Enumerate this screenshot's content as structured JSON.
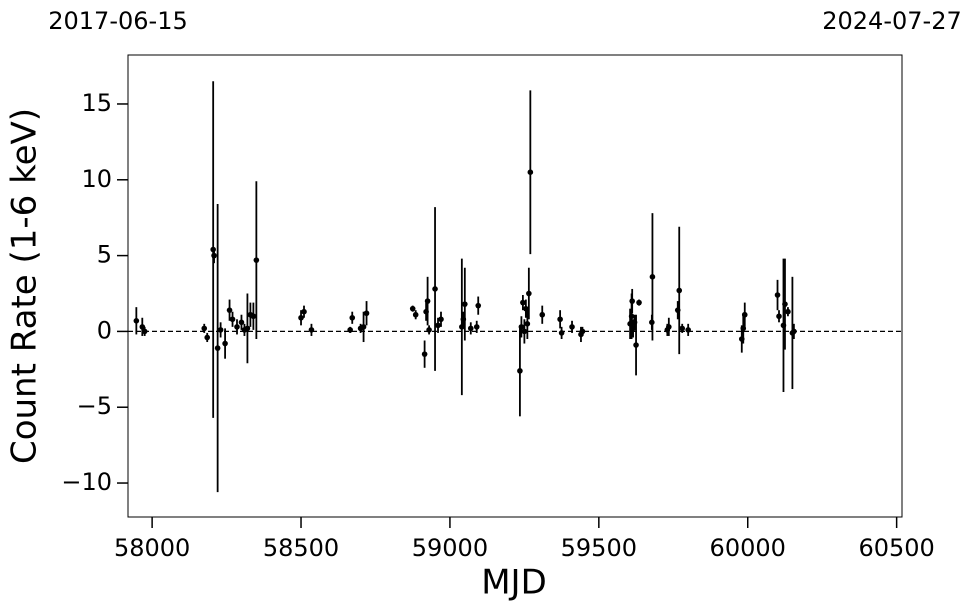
{
  "chart_data": {
    "type": "errorbar-scatter",
    "xlabel": "MJD",
    "ylabel": "Count Rate (1-6 keV)",
    "xlim": [
      57919,
      60518
    ],
    "ylim": [
      -12.24,
      18.23
    ],
    "xticks": [
      58000,
      58500,
      59000,
      59500,
      60000,
      60500
    ],
    "yticks": [
      {
        "value": -10,
        "label": "−10"
      },
      {
        "value": -5,
        "label": "−5"
      },
      0,
      5,
      10,
      15
    ],
    "x2ticks": [
      {
        "value": 57919,
        "label": "2017-06-15"
      },
      {
        "value": 60518,
        "label": "2024-07-27"
      }
    ],
    "hline": 0,
    "color": "#000000",
    "x": [
      57947,
      57967,
      57975,
      58175,
      58185,
      58205,
      58208,
      58220,
      58230,
      58245,
      58260,
      58270,
      58285,
      58300,
      58310,
      58320,
      58330,
      58340,
      58350,
      58500,
      58510,
      58535,
      58665,
      58672,
      58700,
      58710,
      58720,
      58875,
      58885,
      58915,
      58920,
      58925,
      58930,
      58950,
      58960,
      58970,
      59040,
      59045,
      59050,
      59070,
      59090,
      59095,
      59235,
      59240,
      59245,
      59250,
      59255,
      59260,
      59265,
      59270,
      59310,
      59370,
      59375,
      59410,
      59440,
      59445,
      59605,
      59610,
      59612,
      59615,
      59620,
      59625,
      59635,
      59678,
      59680,
      59730,
      59735,
      59765,
      59770,
      59780,
      59800,
      59980,
      59985,
      59990,
      60100,
      60105,
      60120,
      60125,
      60135,
      60150,
      60155
    ],
    "values": [
      0.7,
      0.3,
      0.0,
      0.2,
      -0.4,
      5.4,
      5.0,
      -1.1,
      0.1,
      -0.8,
      1.4,
      0.8,
      0.3,
      0.6,
      0.1,
      0.2,
      1.1,
      1.0,
      4.7,
      0.9,
      1.3,
      0.1,
      0.1,
      0.9,
      0.2,
      0.3,
      1.2,
      1.5,
      1.1,
      -1.5,
      1.3,
      2.0,
      0.1,
      2.8,
      0.4,
      0.8,
      0.3,
      0.8,
      1.8,
      0.2,
      0.3,
      1.7,
      -2.6,
      0.3,
      1.9,
      0.0,
      1.5,
      0.5,
      2.5,
      10.5,
      1.1,
      0.8,
      -0.1,
      0.3,
      -0.2,
      0.0,
      0.5,
      1.0,
      2.0,
      0.2,
      0.6,
      -0.9,
      1.9,
      0.6,
      3.6,
      0.1,
      0.3,
      1.4,
      2.7,
      0.2,
      0.1,
      -0.5,
      0.2,
      1.1,
      2.4,
      1.0,
      0.4,
      1.8,
      1.3,
      -0.1,
      0.0
    ],
    "errors": [
      0.9,
      0.6,
      0.3,
      0.3,
      0.3,
      11.1,
      0.5,
      9.5,
      0.5,
      1.0,
      0.7,
      0.5,
      0.5,
      0.5,
      0.4,
      2.3,
      0.8,
      0.9,
      5.2,
      0.5,
      0.4,
      0.4,
      0.2,
      0.4,
      0.3,
      1.0,
      0.8,
      0.2,
      0.3,
      0.9,
      0.6,
      1.6,
      0.3,
      5.4,
      0.5,
      0.5,
      4.5,
      0.5,
      2.4,
      0.4,
      0.4,
      0.6,
      3.0,
      0.7,
      0.5,
      0.8,
      0.6,
      1.0,
      1.7,
      5.4,
      0.6,
      0.6,
      0.4,
      0.4,
      0.5,
      0.3,
      1.0,
      1.5,
      0.8,
      0.6,
      0.5,
      2.0,
      0.2,
      0.5,
      4.2,
      0.4,
      0.6,
      0.6,
      4.2,
      0.3,
      0.4,
      0.9,
      1.0,
      0.8,
      1.0,
      0.4,
      4.4,
      3.0,
      0.3,
      3.7,
      0.5
    ]
  }
}
